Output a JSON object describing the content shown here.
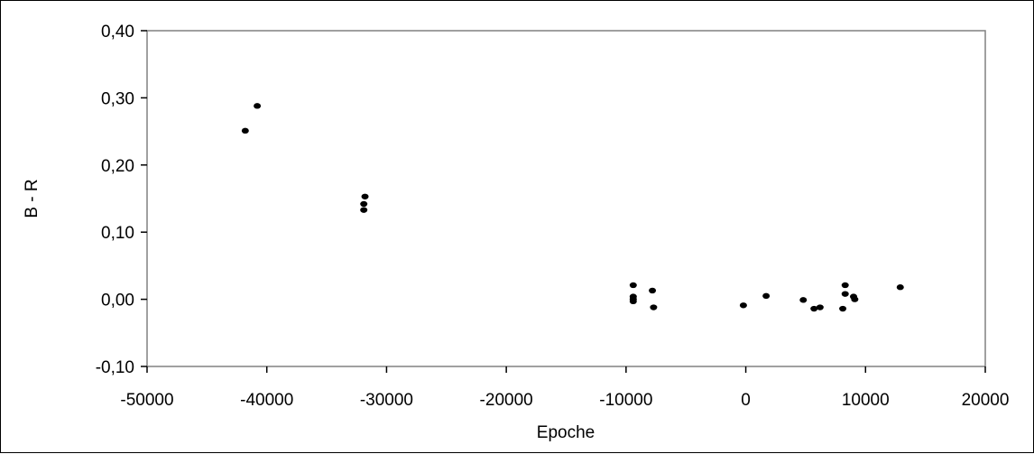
{
  "chart_data": {
    "type": "scatter",
    "title": "",
    "xlabel": "Epoche",
    "ylabel": "B - R",
    "xlim": [
      -50000,
      20000
    ],
    "ylim": [
      -0.1,
      0.4
    ],
    "x_ticks": [
      -50000,
      -40000,
      -30000,
      -20000,
      -10000,
      0,
      10000,
      20000
    ],
    "x_tick_labels": [
      "-50000",
      "-40000",
      "-30000",
      "-20000",
      "-10000",
      "0",
      "10000",
      "20000"
    ],
    "y_ticks": [
      -0.1,
      0.0,
      0.1,
      0.2,
      0.3,
      0.4
    ],
    "y_tick_labels": [
      "-0,10",
      "0,00",
      "0,10",
      "0,20",
      "0,30",
      "0,40"
    ],
    "grid": false,
    "legend": "none",
    "marker_color": "#000000",
    "points": [
      {
        "x": -41800,
        "y": 0.251
      },
      {
        "x": -40800,
        "y": 0.288
      },
      {
        "x": -31800,
        "y": 0.153
      },
      {
        "x": -31900,
        "y": 0.142
      },
      {
        "x": -31900,
        "y": 0.133
      },
      {
        "x": -9400,
        "y": 0.021
      },
      {
        "x": -9400,
        "y": 0.004
      },
      {
        "x": -9400,
        "y": 0.0
      },
      {
        "x": -9400,
        "y": -0.003
      },
      {
        "x": -7800,
        "y": 0.013
      },
      {
        "x": -7700,
        "y": -0.012
      },
      {
        "x": -200,
        "y": -0.009
      },
      {
        "x": 1700,
        "y": 0.005
      },
      {
        "x": 4800,
        "y": -0.001
      },
      {
        "x": 5700,
        "y": -0.014
      },
      {
        "x": 6200,
        "y": -0.012
      },
      {
        "x": 8100,
        "y": -0.014
      },
      {
        "x": 8300,
        "y": 0.021
      },
      {
        "x": 8300,
        "y": 0.008
      },
      {
        "x": 9000,
        "y": 0.004
      },
      {
        "x": 9100,
        "y": 0.0
      },
      {
        "x": 12900,
        "y": 0.018
      }
    ]
  }
}
